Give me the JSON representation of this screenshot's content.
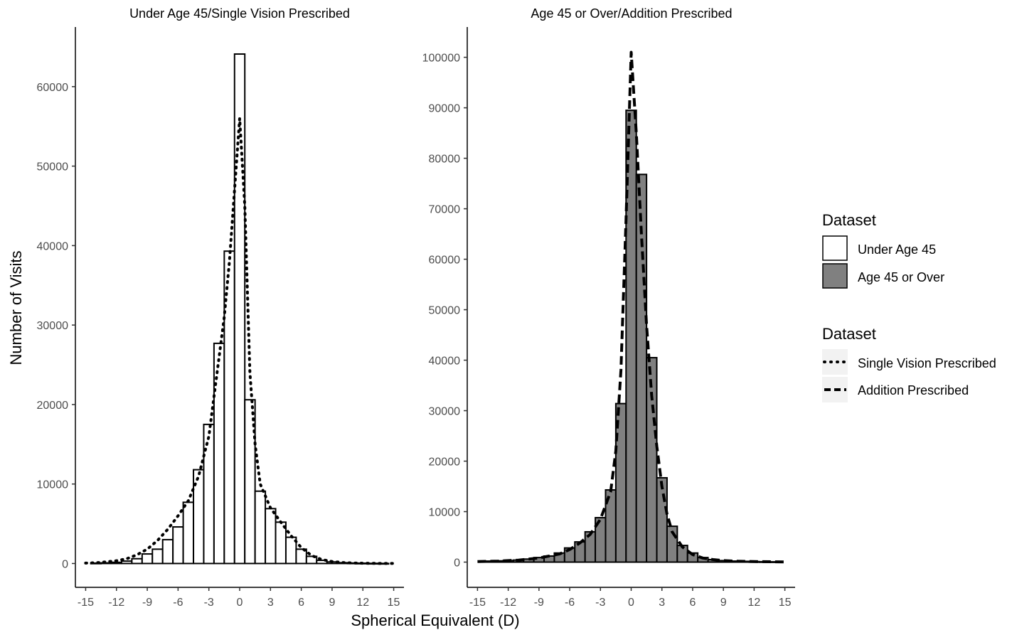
{
  "chart_data": [
    {
      "type": "bar",
      "title": "Under Age 45/Single Vision Prescribed",
      "xlabel": "Spherical Equivalent (D)",
      "ylabel": "Number of Visits",
      "xlim": [
        -16,
        16
      ],
      "ylim": [
        -3000,
        67500
      ],
      "x_ticks": [
        -15,
        -12,
        -9,
        -6,
        -3,
        0,
        3,
        6,
        9,
        12,
        15
      ],
      "y_ticks": [
        0,
        10000,
        20000,
        30000,
        40000,
        50000,
        60000
      ],
      "fill": "#ffffff",
      "series": [
        {
          "name": "Under Age 45",
          "kind": "histogram",
          "bin_width": 1,
          "x": [
            -14,
            -13,
            -12,
            -11,
            -10,
            -9,
            -8,
            -7,
            -6,
            -5,
            -4,
            -3,
            -2,
            -1,
            0,
            1,
            2,
            3,
            4,
            5,
            6,
            7,
            8,
            9,
            10,
            11,
            12,
            13,
            14
          ],
          "values": [
            50,
            80,
            150,
            300,
            600,
            1200,
            1800,
            3000,
            4600,
            7700,
            11800,
            17500,
            27700,
            39300,
            64100,
            20600,
            9100,
            6900,
            5200,
            3300,
            1800,
            900,
            400,
            200,
            100,
            60,
            40,
            20,
            10
          ]
        },
        {
          "name": "Single Vision Prescribed",
          "kind": "density-line",
          "line_style": "dotted",
          "x": [
            -15,
            -14,
            -13,
            -12,
            -11,
            -10,
            -9,
            -8,
            -7,
            -6,
            -5,
            -4,
            -3,
            -2.5,
            -2,
            -1.5,
            -1,
            -0.5,
            0,
            0.5,
            1,
            1.5,
            2,
            3,
            4,
            5,
            6,
            7,
            8,
            9,
            10,
            11,
            12,
            13,
            14,
            15
          ],
          "values": [
            50,
            100,
            200,
            350,
            600,
            1100,
            1800,
            2900,
            4300,
            6000,
            7900,
            11000,
            16000,
            21000,
            26000,
            31000,
            38000,
            47000,
            56000,
            45000,
            24000,
            15000,
            10000,
            7000,
            5200,
            3500,
            2000,
            1000,
            500,
            250,
            120,
            60,
            30,
            15,
            8,
            5
          ]
        }
      ]
    },
    {
      "type": "bar",
      "title": "Age 45 or Over/Addition Prescribed",
      "xlabel": "Spherical Equivalent (D)",
      "ylabel": "Number of Visits",
      "xlim": [
        -16,
        16
      ],
      "ylim": [
        -5000,
        106000
      ],
      "x_ticks": [
        -15,
        -12,
        -9,
        -6,
        -3,
        0,
        3,
        6,
        9,
        12,
        15
      ],
      "y_ticks": [
        0,
        10000,
        20000,
        30000,
        40000,
        50000,
        60000,
        70000,
        80000,
        90000,
        100000
      ],
      "fill": "#808080",
      "series": [
        {
          "name": "Age 45 or Over",
          "kind": "histogram",
          "bin_width": 1,
          "x": [
            -14,
            -13,
            -12,
            -11,
            -10,
            -9,
            -8,
            -7,
            -6,
            -5,
            -4,
            -3,
            -2,
            -1,
            0,
            1,
            2,
            3,
            4,
            5,
            6,
            7,
            8,
            9,
            10,
            11,
            12,
            13,
            14
          ],
          "values": [
            200,
            250,
            300,
            400,
            600,
            900,
            1200,
            1800,
            2800,
            4000,
            6000,
            8800,
            14300,
            31400,
            89500,
            76800,
            40500,
            16700,
            7100,
            3300,
            1800,
            900,
            500,
            300,
            200,
            150,
            100,
            80,
            60
          ]
        },
        {
          "name": "Addition Prescribed",
          "kind": "density-line",
          "line_style": "dashed",
          "x": [
            -15,
            -13,
            -11,
            -9,
            -7,
            -6,
            -5,
            -4,
            -3,
            -2,
            -1.5,
            -1,
            -0.5,
            0,
            0.5,
            1,
            1.5,
            2,
            2.5,
            3,
            3.5,
            4,
            5,
            6,
            7,
            8,
            9,
            10,
            12,
            14,
            15
          ],
          "values": [
            100,
            200,
            400,
            800,
            1600,
            2500,
            3800,
            5500,
            8500,
            14000,
            22000,
            38000,
            68000,
            101000,
            85000,
            65000,
            47000,
            33000,
            23000,
            15000,
            9500,
            6000,
            3000,
            1500,
            800,
            500,
            300,
            200,
            100,
            50,
            30
          ]
        }
      ]
    }
  ],
  "legend": {
    "fill_title": "Dataset",
    "fill_items": [
      {
        "label": "Under Age 45",
        "color": "#ffffff"
      },
      {
        "label": "Age 45 or Over",
        "color": "#808080"
      }
    ],
    "line_title": "Dataset",
    "line_items": [
      {
        "label": "Single Vision Prescribed",
        "style": "dotted"
      },
      {
        "label": "Addition Prescribed",
        "style": "dashed"
      }
    ]
  }
}
